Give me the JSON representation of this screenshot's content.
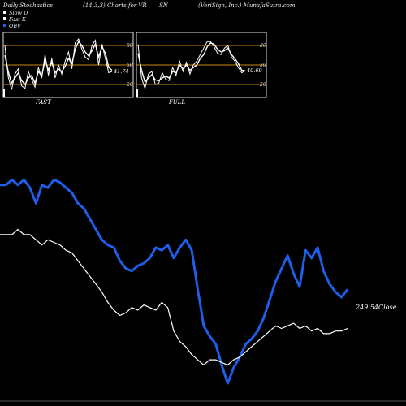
{
  "header": {
    "left": "Daily Stochastics",
    "mid": "(14,3,3) Charts for VR",
    "ticker": "SN",
    "right": "(VeriSign, Inc.) MunafaSutra.com"
  },
  "legend": [
    {
      "label": "Slow  D",
      "color": "#ffffff"
    },
    {
      "label": "Fast K",
      "color": "#ffffff"
    },
    {
      "label": "OBV",
      "color": "#1e5ee8"
    }
  ],
  "colors": {
    "obv": "#1e5ee8",
    "price": "#ffffff",
    "band": "#c8870e",
    "background": "#000000"
  },
  "chart_data": [
    {
      "type": "line",
      "title": "FAST",
      "ylim": [
        0,
        100
      ],
      "yticks": [
        20,
        50,
        80
      ],
      "last_value_label": "41.74",
      "series": [
        {
          "name": "Slow D",
          "values": [
            65,
            40,
            22,
            30,
            38,
            26,
            20,
            30,
            34,
            22,
            40,
            33,
            58,
            42,
            54,
            38,
            44,
            40,
            48,
            60,
            52,
            74,
            86,
            80,
            70,
            64,
            72,
            82,
            62,
            78,
            68,
            46,
            42
          ]
        },
        {
          "name": "Fast K",
          "values": [
            80,
            32,
            12,
            36,
            44,
            18,
            14,
            40,
            28,
            16,
            46,
            30,
            66,
            34,
            60,
            30,
            50,
            36,
            56,
            70,
            44,
            84,
            90,
            74,
            62,
            58,
            80,
            88,
            50,
            82,
            60,
            38,
            40
          ]
        }
      ]
    },
    {
      "type": "line",
      "title": "FULL",
      "ylim": [
        0,
        100
      ],
      "yticks": [
        20,
        50,
        80
      ],
      "last_value_label": "40.69",
      "series": [
        {
          "name": "Slow D",
          "values": [
            68,
            42,
            24,
            30,
            35,
            27,
            26,
            30,
            33,
            30,
            40,
            38,
            50,
            44,
            50,
            42,
            46,
            50,
            60,
            66,
            78,
            84,
            82,
            74,
            70,
            72,
            76,
            66,
            60,
            52,
            42,
            41
          ]
        },
        {
          "name": "Fast K",
          "values": [
            82,
            30,
            14,
            36,
            40,
            20,
            22,
            38,
            28,
            26,
            46,
            34,
            56,
            40,
            54,
            36,
            50,
            56,
            66,
            76,
            86,
            86,
            78,
            68,
            66,
            76,
            80,
            62,
            56,
            46,
            38,
            41
          ]
        }
      ]
    },
    {
      "type": "line",
      "title": "",
      "last_value_label": "249.54Close",
      "series": [
        {
          "name": "OBV",
          "values": [
            62,
            62,
            66,
            62,
            66,
            60,
            48,
            62,
            60,
            66,
            64,
            60,
            56,
            48,
            44,
            36,
            28,
            20,
            16,
            14,
            4,
            -2,
            -4,
            0,
            2,
            6,
            14,
            12,
            16,
            6,
            14,
            20,
            12,
            -18,
            -46,
            -54,
            -60,
            -76,
            -90,
            -78,
            -70,
            -60,
            -56,
            -50,
            -40,
            -26,
            -12,
            -2,
            8,
            -6,
            -16,
            12,
            6,
            14,
            -4,
            -14,
            -20,
            -24,
            -18
          ]
        },
        {
          "name": "Close",
          "values": [
            24,
            24,
            24,
            28,
            24,
            24,
            20,
            16,
            20,
            18,
            16,
            12,
            10,
            4,
            -2,
            -8,
            -14,
            -20,
            -28,
            -34,
            -38,
            -36,
            -32,
            -34,
            -30,
            -32,
            -34,
            -28,
            -32,
            -50,
            -58,
            -62,
            -68,
            -72,
            -76,
            -72,
            -72,
            -74,
            -76,
            -72,
            -70,
            -66,
            -62,
            -58,
            -54,
            -50,
            -46,
            -48,
            -46,
            -44,
            -48,
            -46,
            -50,
            -48,
            -52,
            -52,
            -50,
            -50,
            -48
          ]
        }
      ]
    }
  ]
}
